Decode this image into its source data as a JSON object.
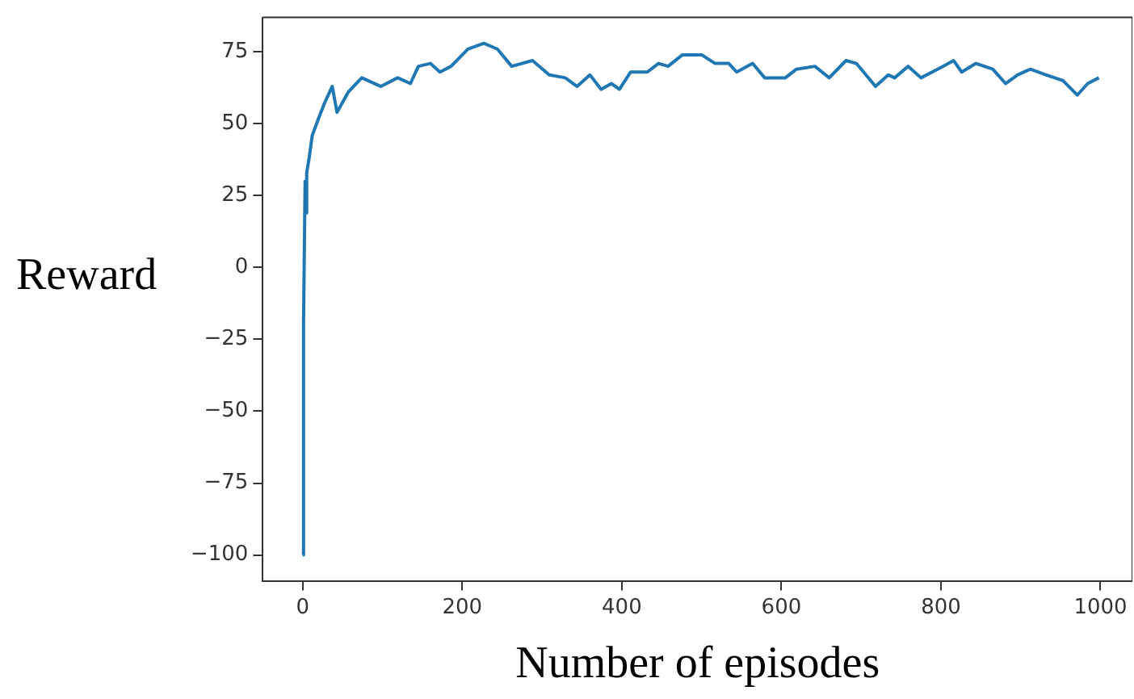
{
  "chart_data": {
    "type": "line",
    "xlabel": "Number of episodes",
    "ylabel": "Reward",
    "x": [
      0,
      1,
      3,
      4,
      5,
      8,
      12,
      20,
      27,
      37,
      43,
      57,
      74,
      98,
      119,
      135,
      145,
      160,
      172,
      186,
      207,
      227,
      244,
      262,
      288,
      309,
      329,
      344,
      360,
      374,
      387,
      397,
      411,
      432,
      446,
      458,
      476,
      500,
      517,
      534,
      544,
      564,
      579,
      605,
      619,
      642,
      660,
      681,
      694,
      718,
      734,
      742,
      759,
      775,
      796,
      816,
      826,
      844,
      865,
      881,
      896,
      912,
      932,
      953,
      971,
      984,
      998
    ],
    "series": [
      {
        "color": "#1f77b4",
        "values": [
          -100,
          -20,
          30,
          19,
          33,
          38,
          46,
          52,
          57,
          63,
          54,
          61,
          66,
          63,
          66,
          64,
          70,
          71,
          68,
          70,
          76,
          78,
          76,
          70,
          72,
          67,
          66,
          63,
          67,
          62,
          64,
          62,
          68,
          68,
          71,
          70,
          74,
          74,
          71,
          71,
          68,
          71,
          66,
          66,
          69,
          70,
          66,
          72,
          71,
          63,
          67,
          66,
          70,
          66,
          69,
          72,
          68,
          71,
          69,
          64,
          67,
          69,
          67,
          65,
          60,
          64,
          66
        ]
      }
    ],
    "xlim": [
      -50,
      1040
    ],
    "ylim": [
      -109,
      87
    ],
    "xticks": [
      0,
      200,
      400,
      600,
      800,
      1000
    ],
    "yticks": [
      -100,
      -75,
      -50,
      -25,
      0,
      25,
      50,
      75
    ],
    "grid": false,
    "legend": false,
    "marker": "none",
    "line_style": "solid"
  }
}
